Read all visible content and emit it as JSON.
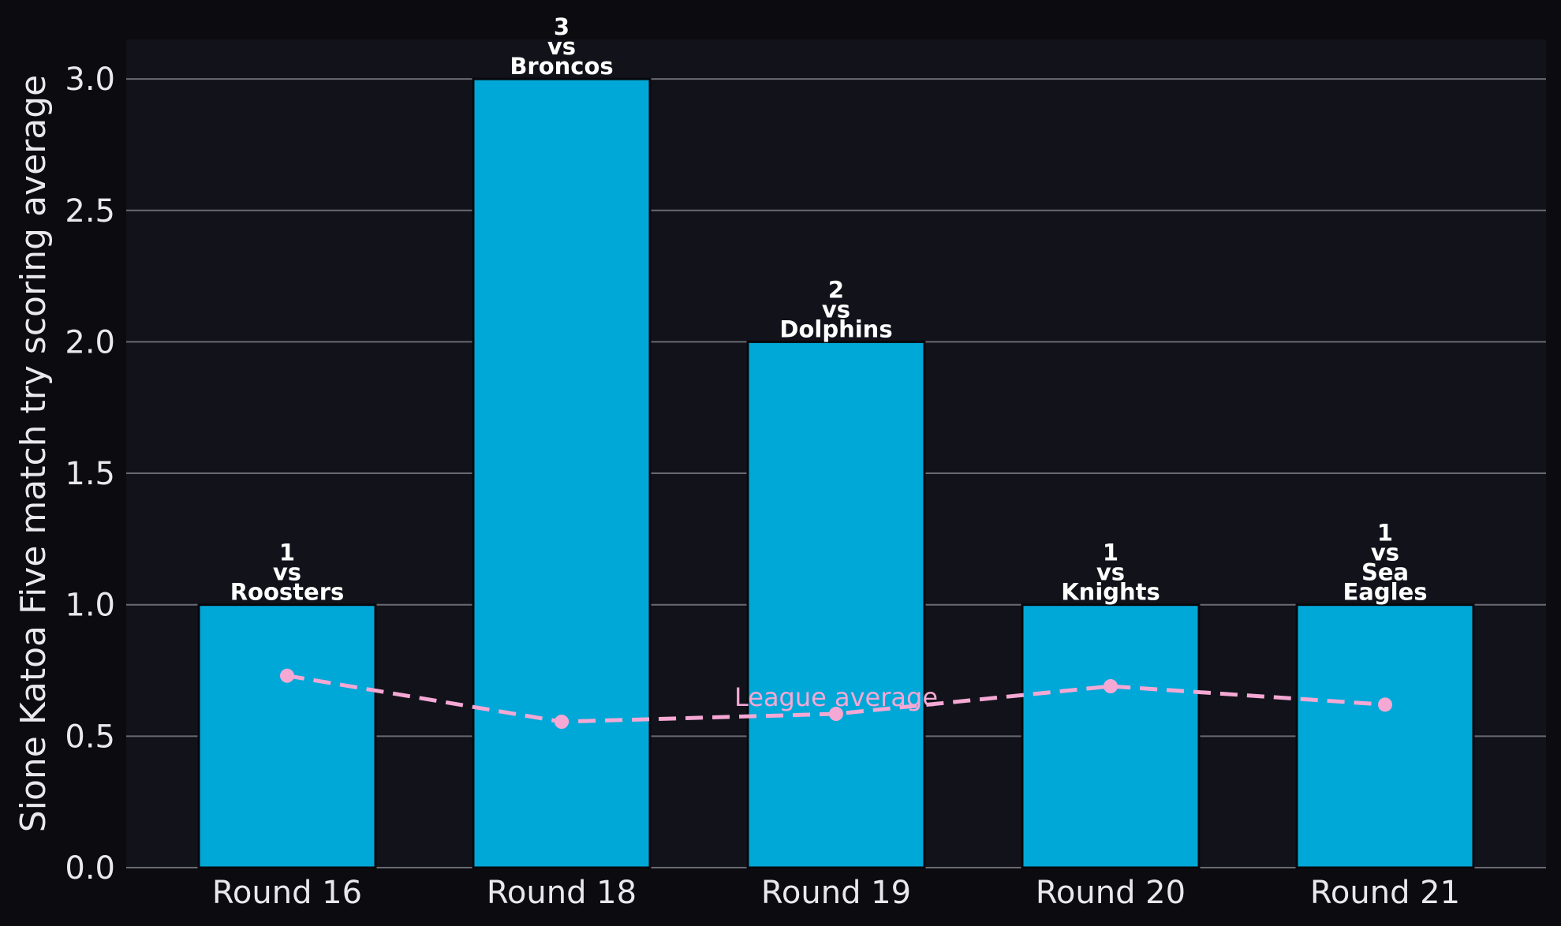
{
  "chart_data": {
    "type": "bar",
    "categories": [
      "Round 16",
      "Round 18",
      "Round 19",
      "Round 20",
      "Round 21"
    ],
    "series": [
      {
        "values": [
          1,
          3,
          2,
          1,
          1
        ]
      }
    ],
    "bar_labels": [
      [
        "1",
        "vs",
        "Roosters"
      ],
      [
        "3",
        "vs",
        "Broncos"
      ],
      [
        "2",
        "vs",
        "Dolphins"
      ],
      [
        "1",
        "vs",
        "Knights"
      ],
      [
        "1",
        "vs",
        "Sea",
        "Eagles"
      ]
    ],
    "league_average": {
      "name": "League average",
      "values": [
        0.73,
        0.555,
        0.585,
        0.69,
        0.62
      ]
    },
    "ylabel": "Sione Katoa Five match try scoring average",
    "ylim": [
      0,
      3.15
    ],
    "yticks": [
      "0.0",
      "0.5",
      "1.0",
      "1.5",
      "2.0",
      "2.5",
      "3.0"
    ],
    "grid": true,
    "colors": {
      "bar": "#00a8d8",
      "average_line": "#f5a8d4",
      "background": "#0b0b10",
      "plot_background": "#12131a",
      "grid": "#6a6a72",
      "text": "#e8e8ee"
    }
  }
}
